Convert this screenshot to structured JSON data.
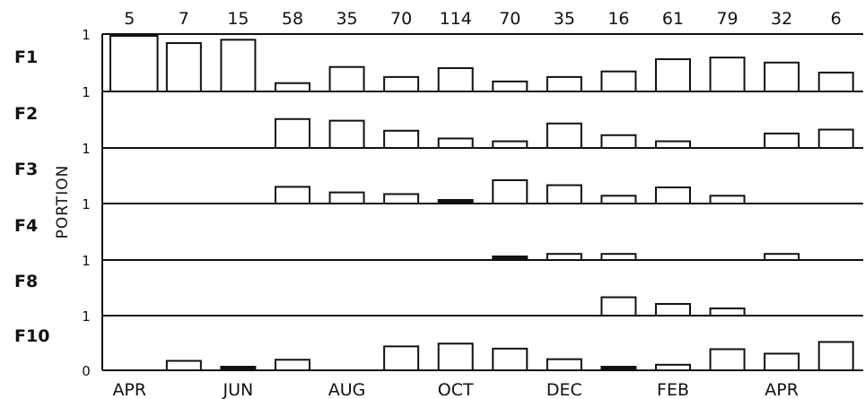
{
  "chart_data": {
    "type": "bar",
    "ylabel": "PORTION",
    "counts": [
      "5",
      "7",
      "15",
      "58",
      "35",
      "70",
      "114",
      "70",
      "35",
      "16",
      "61",
      "79",
      "32",
      "6"
    ],
    "x_tick_labels": [
      "APR",
      "JUN",
      "AUG",
      "OCT",
      "DEC",
      "FEB",
      "APR"
    ],
    "y_tick_labels": {
      "top": "1",
      "between": "1",
      "bottom": "0"
    },
    "ylim": [
      0,
      1
    ],
    "panels": [
      {
        "name": "F1",
        "values": [
          1.0,
          0.87,
          0.93,
          0.15,
          0.44,
          0.26,
          0.42,
          0.18,
          0.26,
          0.36,
          0.58,
          0.61,
          0.52,
          0.34
        ]
      },
      {
        "name": "F2",
        "values": [
          0,
          0,
          0,
          0.52,
          0.49,
          0.31,
          0.17,
          0.12,
          0.44,
          0.23,
          0.12,
          0,
          0.26,
          0.33
        ]
      },
      {
        "name": "F3",
        "values": [
          0,
          0,
          0,
          0.3,
          0.2,
          0.17,
          0.06,
          0.42,
          0.33,
          0.14,
          0.29,
          0.14,
          0,
          0
        ]
      },
      {
        "name": "F4",
        "values": [
          0,
          0,
          0,
          0,
          0,
          0,
          0,
          0.05,
          0.11,
          0.11,
          0,
          0,
          0.11,
          0
        ]
      },
      {
        "name": "F8",
        "values": [
          0,
          0,
          0,
          0,
          0,
          0,
          0,
          0,
          0,
          0.33,
          0.21,
          0.13,
          0,
          0
        ]
      },
      {
        "name": "F10",
        "values": [
          0,
          0.17,
          0.06,
          0.19,
          0,
          0.43,
          0.48,
          0.39,
          0.2,
          0.06,
          0.1,
          0.38,
          0.3,
          0.51
        ]
      }
    ],
    "grid": false,
    "legend": "none"
  }
}
